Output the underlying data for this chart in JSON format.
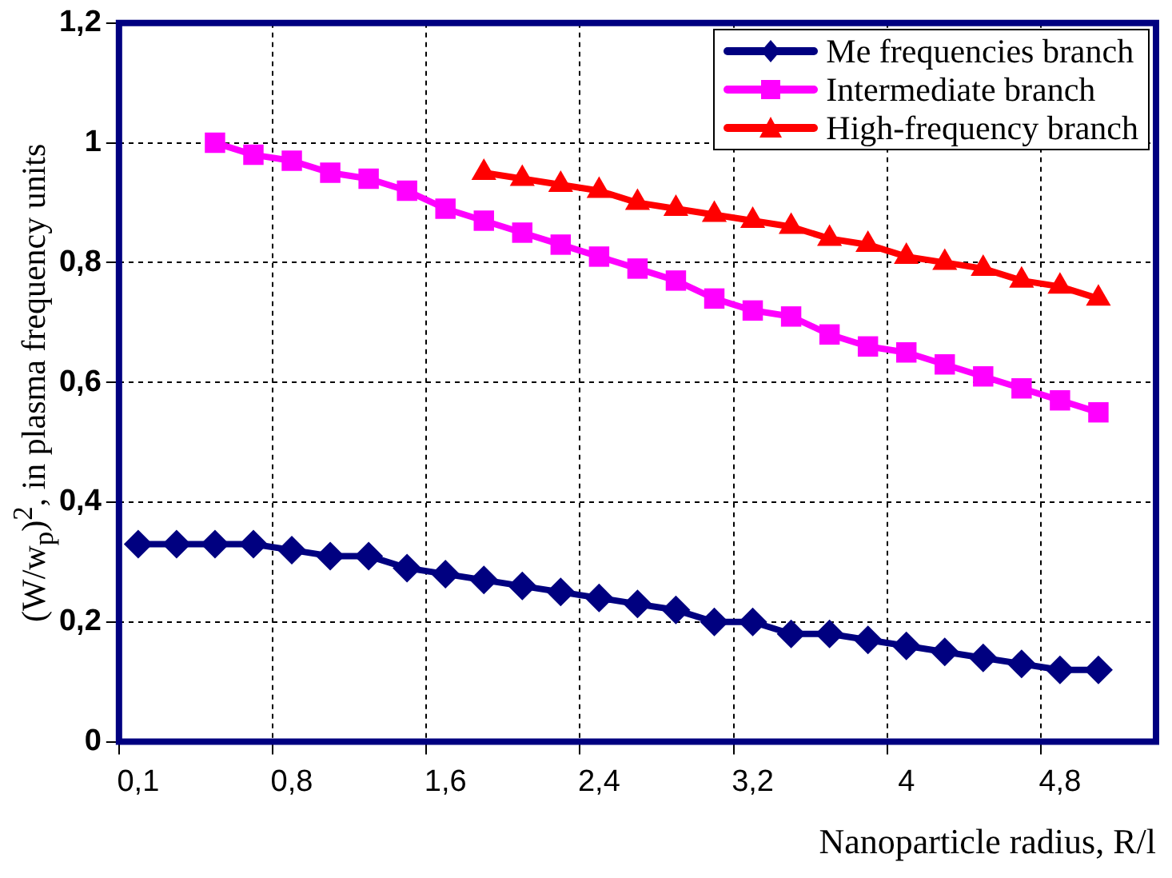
{
  "chart_data": {
    "type": "line",
    "xlabel": "Nanoparticle radius, R/l",
    "ylabel": "(W/w$_{p}$)$^{2}$, in plasma frequency units",
    "categories": [
      "0,1",
      null,
      null,
      null,
      "0,8",
      null,
      null,
      null,
      "1,6",
      null,
      null,
      null,
      "2,4",
      null,
      null,
      null,
      "3,2",
      null,
      null,
      null,
      "4",
      null,
      null,
      null,
      "4,8",
      null,
      null
    ],
    "series": [
      {
        "name": "Me frequencies branch",
        "color": "#000080",
        "marker": "diamond",
        "values": [
          0.33,
          0.33,
          0.33,
          0.33,
          0.32,
          0.31,
          0.31,
          0.29,
          0.28,
          0.27,
          0.26,
          0.25,
          0.24,
          0.23,
          0.22,
          0.2,
          0.2,
          0.18,
          0.18,
          0.17,
          0.16,
          0.15,
          0.14,
          0.13,
          0.12,
          0.12,
          null
        ]
      },
      {
        "name": "Intermediate branch",
        "color": "#ff00ff",
        "marker": "square",
        "values": [
          null,
          null,
          1.0,
          0.98,
          0.97,
          0.95,
          0.94,
          0.92,
          0.89,
          0.87,
          0.85,
          0.83,
          0.81,
          0.79,
          0.77,
          0.74,
          0.72,
          0.71,
          0.68,
          0.66,
          0.65,
          0.63,
          0.61,
          0.59,
          0.57,
          0.55,
          null
        ]
      },
      {
        "name": "High-frequency branch",
        "color": "#ff0000",
        "marker": "triangle",
        "values": [
          null,
          null,
          null,
          null,
          null,
          null,
          null,
          null,
          null,
          0.95,
          0.94,
          0.93,
          0.92,
          0.9,
          0.89,
          0.88,
          0.87,
          0.86,
          0.84,
          0.83,
          0.81,
          0.8,
          0.79,
          0.77,
          0.76,
          0.74,
          null
        ]
      }
    ],
    "ylim": [
      0,
      1.2
    ],
    "yticks": [
      0,
      {
        "value": 0.2,
        "label": "0,2"
      },
      {
        "value": 0.4,
        "label": "0,4"
      },
      {
        "value": 0.6,
        "label": "0,6"
      },
      {
        "value": 0.8,
        "label": "0,8"
      },
      1,
      {
        "value": 1.2,
        "label": "1,2"
      }
    ],
    "grid": true,
    "legend": "top right",
    "line_style": "solid"
  }
}
